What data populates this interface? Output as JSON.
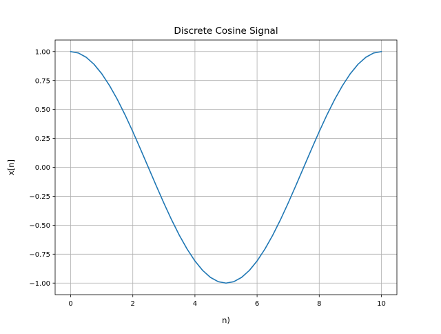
{
  "chart_data": {
    "type": "line",
    "title": "Discrete Cosine Signal",
    "xlabel": "n)",
    "ylabel": "x[n]",
    "xlim": [
      -0.5,
      10.5
    ],
    "ylim": [
      -1.1,
      1.1
    ],
    "grid": true,
    "x_ticks": [
      {
        "value": 0,
        "label": "0"
      },
      {
        "value": 2,
        "label": "2"
      },
      {
        "value": 4,
        "label": "4"
      },
      {
        "value": 6,
        "label": "6"
      },
      {
        "value": 8,
        "label": "8"
      },
      {
        "value": 10,
        "label": "10"
      }
    ],
    "y_ticks": [
      {
        "value": 1.0,
        "label": "1.00"
      },
      {
        "value": 0.75,
        "label": "0.75"
      },
      {
        "value": 0.5,
        "label": "0.50"
      },
      {
        "value": 0.25,
        "label": "0.25"
      },
      {
        "value": 0.0,
        "label": "0.00"
      },
      {
        "value": -0.25,
        "label": "−0.25"
      },
      {
        "value": -0.5,
        "label": "−0.50"
      },
      {
        "value": -0.75,
        "label": "−0.75"
      },
      {
        "value": -1.0,
        "label": "−1.00"
      }
    ],
    "series": [
      {
        "color": "#1f77b4",
        "x": [
          0,
          0.25,
          0.5,
          0.75,
          1,
          1.25,
          1.5,
          1.75,
          2,
          2.25,
          2.5,
          2.75,
          3,
          3.25,
          3.5,
          3.75,
          4,
          4.25,
          4.5,
          4.75,
          5,
          5.25,
          5.5,
          5.75,
          6,
          6.25,
          6.5,
          6.75,
          7,
          7.25,
          7.5,
          7.75,
          8,
          8.25,
          8.5,
          8.75,
          9,
          9.25,
          9.5,
          9.75,
          10
        ],
        "y": [
          1.0,
          0.988,
          0.951,
          0.891,
          0.809,
          0.707,
          0.588,
          0.454,
          0.309,
          0.156,
          0.0,
          -0.156,
          -0.309,
          -0.454,
          -0.588,
          -0.707,
          -0.809,
          -0.891,
          -0.951,
          -0.988,
          -1.0,
          -0.988,
          -0.951,
          -0.891,
          -0.809,
          -0.707,
          -0.588,
          -0.454,
          -0.309,
          -0.156,
          0.0,
          0.156,
          0.309,
          0.454,
          0.588,
          0.707,
          0.809,
          0.891,
          0.951,
          0.988,
          1.0
        ]
      }
    ]
  },
  "colors": {
    "grid": "#b0b0b0",
    "axes": "#000000",
    "line": "#1f77b4"
  }
}
